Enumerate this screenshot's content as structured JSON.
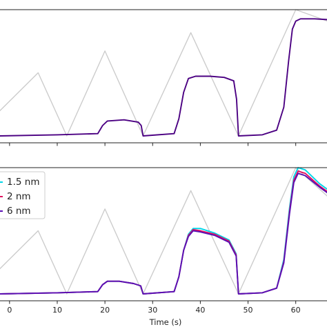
{
  "chart_data": [
    {
      "type": "line",
      "xlim": [
        -2,
        68
      ],
      "ylim": [
        -0.06,
        1.1
      ],
      "grid": false,
      "x_ticks": [
        0,
        10,
        20,
        30,
        40,
        50,
        60
      ],
      "x_tick_labels": [],
      "xlabel": "",
      "series": [
        {
          "color": "#cccccc",
          "points": [
            [
              -2,
              0.22
            ],
            [
              6,
              0.55
            ],
            [
              12,
              0
            ],
            [
              20,
              0.74
            ],
            [
              28,
              0
            ],
            [
              38,
              0.9
            ],
            [
              48,
              0
            ],
            [
              60,
              1.1
            ],
            [
              68,
              0.98
            ]
          ]
        },
        {
          "color": "#4b0082",
          "points": [
            [
              -2,
              0
            ],
            [
              10,
              0.01
            ],
            [
              18.5,
              0.02
            ],
            [
              19.5,
              0.09
            ],
            [
              20.5,
              0.13
            ],
            [
              24,
              0.14
            ],
            [
              27,
              0.12
            ],
            [
              27.6,
              0.09
            ],
            [
              28,
              0
            ],
            [
              34.5,
              0.02
            ],
            [
              35.5,
              0.15
            ],
            [
              36.5,
              0.38
            ],
            [
              37.5,
              0.5
            ],
            [
              39,
              0.52
            ],
            [
              42,
              0.52
            ],
            [
              45,
              0.51
            ],
            [
              47,
              0.48
            ],
            [
              47.6,
              0.32
            ],
            [
              48,
              0
            ],
            [
              53,
              0.01
            ],
            [
              56,
              0.05
            ],
            [
              57.5,
              0.25
            ],
            [
              58.5,
              0.65
            ],
            [
              59.3,
              0.93
            ],
            [
              60,
              1.0
            ],
            [
              61,
              1.02
            ],
            [
              64,
              1.02
            ],
            [
              68,
              1.01
            ]
          ]
        }
      ]
    },
    {
      "type": "line",
      "xlim": [
        -2,
        68
      ],
      "ylim": [
        -0.06,
        1.1
      ],
      "grid": false,
      "x_ticks": [
        0,
        10,
        20,
        30,
        40,
        50,
        60
      ],
      "x_tick_labels": [
        "0",
        "10",
        "20",
        "30",
        "40",
        "50",
        "60"
      ],
      "xlabel": "Time (s)",
      "legend": {
        "placement": "upper-left",
        "entries": [
          "1.5 nm",
          "2 nm",
          "6 nm"
        ]
      },
      "series": [
        {
          "color": "#cccccc",
          "points": [
            [
              -2,
              0.22
            ],
            [
              6,
              0.55
            ],
            [
              12,
              0
            ],
            [
              20,
              0.74
            ],
            [
              28,
              0
            ],
            [
              38,
              0.9
            ],
            [
              48,
              0
            ],
            [
              60,
              1.1
            ],
            [
              68,
              0.8
            ]
          ]
        },
        {
          "color": "#00d5e8",
          "points": [
            [
              -2,
              0
            ],
            [
              10,
              0.01
            ],
            [
              18.5,
              0.02
            ],
            [
              19.5,
              0.08
            ],
            [
              20.5,
              0.11
            ],
            [
              23,
              0.11
            ],
            [
              26,
              0.09
            ],
            [
              27.5,
              0.07
            ],
            [
              28,
              0
            ],
            [
              34.5,
              0.02
            ],
            [
              35.5,
              0.15
            ],
            [
              36.5,
              0.38
            ],
            [
              37.5,
              0.52
            ],
            [
              38.5,
              0.57
            ],
            [
              40,
              0.57
            ],
            [
              43,
              0.53
            ],
            [
              46,
              0.47
            ],
            [
              47.5,
              0.35
            ],
            [
              48,
              0
            ],
            [
              53,
              0.01
            ],
            [
              56,
              0.05
            ],
            [
              57.5,
              0.3
            ],
            [
              58.7,
              0.75
            ],
            [
              59.6,
              1.02
            ],
            [
              60.5,
              1.1
            ],
            [
              62,
              1.08
            ],
            [
              65,
              0.96
            ],
            [
              68,
              0.87
            ]
          ]
        },
        {
          "color": "#e0115f",
          "points": [
            [
              -2,
              0
            ],
            [
              10,
              0.01
            ],
            [
              18.5,
              0.02
            ],
            [
              19.5,
              0.08
            ],
            [
              20.5,
              0.11
            ],
            [
              23,
              0.11
            ],
            [
              26,
              0.09
            ],
            [
              27.5,
              0.07
            ],
            [
              28,
              0
            ],
            [
              34.5,
              0.02
            ],
            [
              35.5,
              0.15
            ],
            [
              36.5,
              0.38
            ],
            [
              37.5,
              0.51
            ],
            [
              38.5,
              0.56
            ],
            [
              40,
              0.55
            ],
            [
              43,
              0.52
            ],
            [
              46,
              0.46
            ],
            [
              47.5,
              0.34
            ],
            [
              48,
              0
            ],
            [
              53,
              0.01
            ],
            [
              56,
              0.05
            ],
            [
              57.5,
              0.28
            ],
            [
              58.7,
              0.72
            ],
            [
              59.6,
              0.99
            ],
            [
              60.5,
              1.07
            ],
            [
              62,
              1.05
            ],
            [
              65,
              0.94
            ],
            [
              68,
              0.85
            ]
          ]
        },
        {
          "color": "#5a0fb4",
          "points": [
            [
              -2,
              0
            ],
            [
              10,
              0.01
            ],
            [
              18.5,
              0.02
            ],
            [
              19.5,
              0.08
            ],
            [
              20.5,
              0.11
            ],
            [
              23,
              0.11
            ],
            [
              26,
              0.09
            ],
            [
              27.5,
              0.07
            ],
            [
              28,
              0
            ],
            [
              34.5,
              0.02
            ],
            [
              35.5,
              0.15
            ],
            [
              36.5,
              0.38
            ],
            [
              37.5,
              0.5
            ],
            [
              38.5,
              0.55
            ],
            [
              40,
              0.54
            ],
            [
              43,
              0.51
            ],
            [
              46,
              0.45
            ],
            [
              47.5,
              0.33
            ],
            [
              48,
              0
            ],
            [
              53,
              0.01
            ],
            [
              56,
              0.05
            ],
            [
              57.5,
              0.27
            ],
            [
              58.7,
              0.7
            ],
            [
              59.6,
              0.97
            ],
            [
              60.5,
              1.05
            ],
            [
              62,
              1.03
            ],
            [
              65,
              0.93
            ],
            [
              68,
              0.84
            ]
          ]
        }
      ]
    }
  ]
}
